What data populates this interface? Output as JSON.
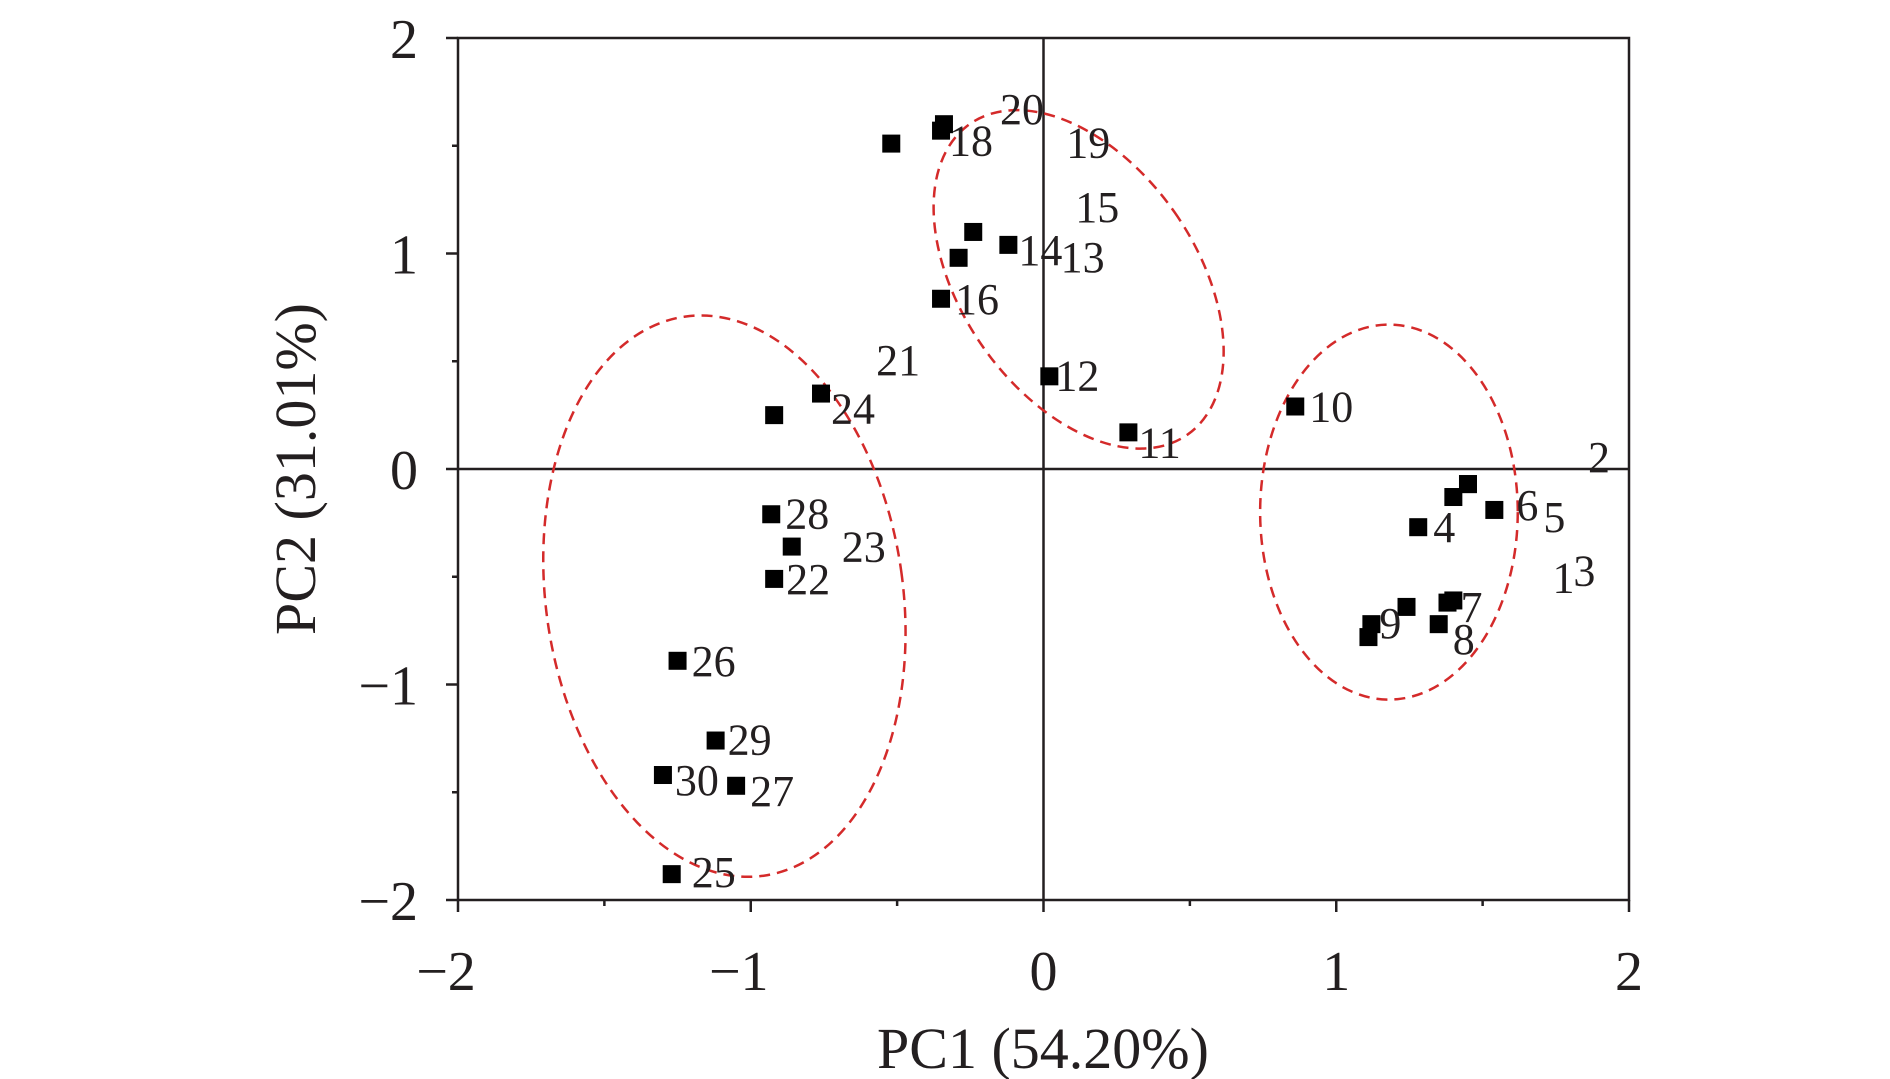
{
  "chart_data": {
    "type": "scatter",
    "xlabel": "PC1 (54.20%)",
    "ylabel": "PC2 (31.01%)",
    "xlim": [
      -2,
      2
    ],
    "ylim": [
      -2,
      2
    ],
    "x_ticks": [
      "−2",
      "−1",
      "0",
      "1",
      "2"
    ],
    "y_ticks": [
      "−2",
      "−1",
      "0",
      "1",
      "2"
    ],
    "grid": false,
    "legend": "none",
    "zero_lines": true,
    "marker": "square",
    "marker_color": "#000000",
    "ellipse_color": "#d42a2a",
    "points": [
      {
        "label": "1",
        "x": 1.38,
        "y": -0.62
      },
      {
        "label": "2",
        "x": 1.45,
        "y": -0.07
      },
      {
        "label": "3",
        "x": 1.4,
        "y": -0.61
      },
      {
        "label": "4",
        "x": 1.28,
        "y": -0.27
      },
      {
        "label": "5",
        "x": 1.4,
        "y": -0.13
      },
      {
        "label": "6",
        "x": 1.54,
        "y": -0.19
      },
      {
        "label": "7",
        "x": 1.24,
        "y": -0.64
      },
      {
        "label": "8",
        "x": 1.35,
        "y": -0.72
      },
      {
        "label": "9",
        "x": 1.12,
        "y": -0.72
      },
      {
        "label": "10",
        "x": 0.86,
        "y": 0.29
      },
      {
        "label": "11",
        "x": 0.29,
        "y": 0.17
      },
      {
        "label": "12",
        "x": 0.02,
        "y": 0.43
      },
      {
        "label": "13",
        "x": -0.29,
        "y": 0.98
      },
      {
        "label": "14",
        "x": -0.12,
        "y": 1.04
      },
      {
        "label": "15",
        "x": -0.24,
        "y": 1.1
      },
      {
        "label": "16",
        "x": -0.35,
        "y": 0.79
      },
      {
        "label": "18",
        "x": -0.35,
        "y": 1.57
      },
      {
        "label": "19",
        "x": -0.52,
        "y": 1.51
      },
      {
        "label": "20",
        "x": -0.34,
        "y": 1.6
      },
      {
        "label": "21",
        "x": -0.92,
        "y": 0.25
      },
      {
        "label": "22",
        "x": -0.92,
        "y": -0.51
      },
      {
        "label": "23",
        "x": -0.86,
        "y": -0.36
      },
      {
        "label": "24",
        "x": -0.76,
        "y": 0.35
      },
      {
        "label": "25",
        "x": -1.27,
        "y": -1.88
      },
      {
        "label": "26",
        "x": -1.25,
        "y": -0.89
      },
      {
        "label": "27",
        "x": -1.05,
        "y": -1.47
      },
      {
        "label": "28",
        "x": -0.93,
        "y": -0.21
      },
      {
        "label": "29",
        "x": -1.12,
        "y": -1.26
      },
      {
        "label": "30",
        "x": -1.3,
        "y": -1.42
      }
    ],
    "extra_points": [
      {
        "x": 1.11,
        "y": -0.78
      },
      {
        "x": 1.45,
        "y": -0.07
      }
    ],
    "ellipses": [
      {
        "cx": -1.09,
        "cy": -0.59,
        "rx": 0.61,
        "ry": 1.31,
        "angle": -8
      },
      {
        "cx": 0.12,
        "cy": 0.88,
        "rx": 0.4,
        "ry": 0.88,
        "angle": -35
      },
      {
        "cx": 1.18,
        "cy": -0.2,
        "rx": 0.44,
        "ry": 0.87,
        "angle": 0
      }
    ]
  }
}
